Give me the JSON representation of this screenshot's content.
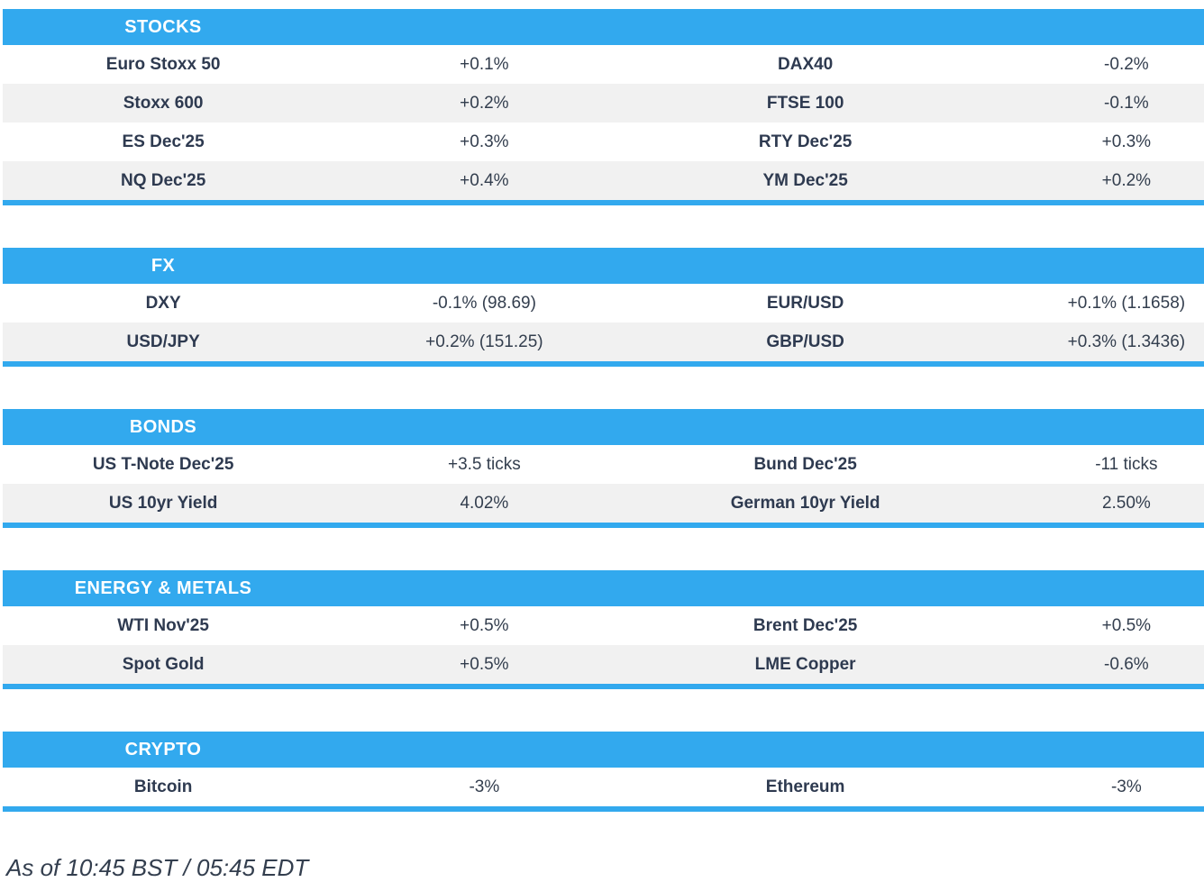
{
  "page": {
    "accent_color": "#32A9EE",
    "stripe_color": "#F1F1F1",
    "header_text_color": "#FFFFFF",
    "name_text_color": "#2E3A50",
    "value_text_color": "#333E4E"
  },
  "sections": [
    {
      "title": "STOCKS",
      "rows": [
        {
          "c0": "Euro Stoxx 50",
          "c1": "+0.1%",
          "c2": "DAX40",
          "c3": "-0.2%"
        },
        {
          "c0": "Stoxx 600",
          "c1": "+0.2%",
          "c2": "FTSE 100",
          "c3": "-0.1%"
        },
        {
          "c0": "ES Dec'25",
          "c1": "+0.3%",
          "c2": "RTY Dec'25",
          "c3": "+0.3%"
        },
        {
          "c0": "NQ Dec'25",
          "c1": "+0.4%",
          "c2": "YM Dec'25",
          "c3": "+0.2%"
        }
      ]
    },
    {
      "title": "FX",
      "rows": [
        {
          "c0": "DXY",
          "c1": "-0.1% (98.69)",
          "c2": "EUR/USD",
          "c3": "+0.1% (1.1658)"
        },
        {
          "c0": "USD/JPY",
          "c1": "+0.2% (151.25)",
          "c2": "GBP/USD",
          "c3": "+0.3% (1.3436)"
        }
      ]
    },
    {
      "title": "BONDS",
      "rows": [
        {
          "c0": "US T-Note Dec'25",
          "c1": "+3.5 ticks",
          "c2": "Bund Dec'25",
          "c3": "-11 ticks"
        },
        {
          "c0": "US 10yr Yield",
          "c1": "4.02%",
          "c2": "German 10yr Yield",
          "c3": "2.50%"
        }
      ]
    },
    {
      "title": "ENERGY & METALS",
      "rows": [
        {
          "c0": "WTI Nov'25",
          "c1": "+0.5%",
          "c2": "Brent Dec'25",
          "c3": "+0.5%"
        },
        {
          "c0": "Spot Gold",
          "c1": "+0.5%",
          "c2": "LME Copper",
          "c3": "-0.6%"
        }
      ]
    },
    {
      "title": "CRYPTO",
      "rows": [
        {
          "c0": "Bitcoin",
          "c1": "-3%",
          "c2": "Ethereum",
          "c3": "-3%"
        }
      ]
    }
  ],
  "footer": {
    "timestamp": "As of 10:45 BST / 05:45 EDT"
  }
}
